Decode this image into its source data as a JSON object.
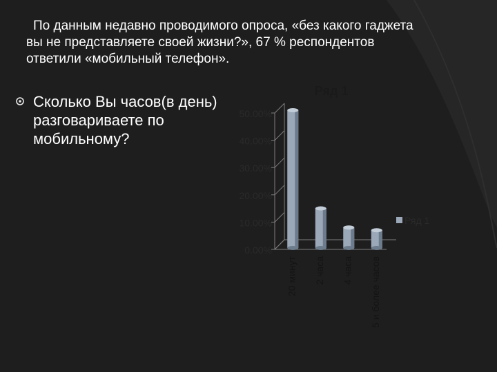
{
  "slide": {
    "intro_text": "По данным недавно проводимого опроса, «без какого гаджета вы не представляете  своей жизни?», 67 % респондентов ответили «мобильный телефон».",
    "bullet_text": "Сколько Вы часов(в день) разговариваете по мобильному?",
    "bullet_icon": "hollow-circle-bullet-icon"
  },
  "chart_data": {
    "type": "bar",
    "title": "Ряд 1",
    "categories": [
      "20 минут",
      "2 часа",
      "4 часа",
      "5 и более часов"
    ],
    "series": [
      {
        "name": "Ряд 1",
        "values": [
          0.5,
          0.14,
          0.07,
          0.06
        ]
      }
    ],
    "y_ticks": [
      "0.00%",
      "10.00%",
      "20.00%",
      "30.00%",
      "40.00%",
      "50.00%"
    ],
    "ylim": [
      0,
      0.5
    ],
    "legend": "right",
    "legend_label": "Ряд 1",
    "grid": false,
    "colors": {
      "bar": "#9aa8b8",
      "bar_dark": "#6d7c8c",
      "axis": "#7f7f7f"
    }
  }
}
